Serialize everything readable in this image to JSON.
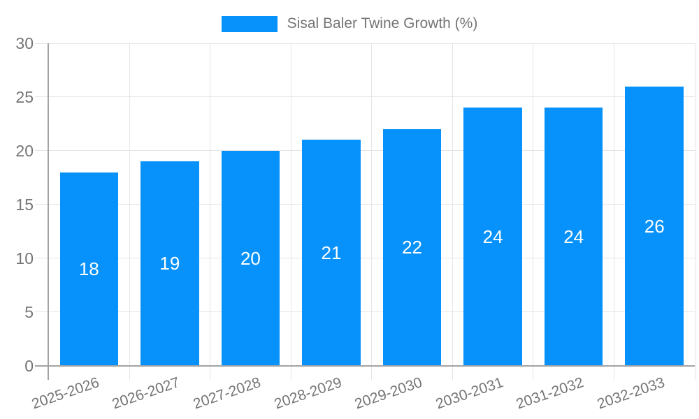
{
  "chart_data": {
    "type": "bar",
    "title": "Sisal Baler Twine Growth (%)",
    "categories": [
      "2025-2026",
      "2026-2027",
      "2027-2028",
      "2028-2029",
      "2029-2030",
      "2030-2031",
      "2031-2032",
      "2032-2033"
    ],
    "values": [
      18,
      19,
      20,
      21,
      22,
      24,
      24,
      26
    ],
    "xlabel": "",
    "ylabel": "",
    "ylim": [
      0,
      30
    ],
    "yticks": [
      0,
      5,
      10,
      15,
      20,
      25,
      30
    ],
    "grid": true,
    "legend_position": "top",
    "bar_color": "#0791FA",
    "value_label_color": "#ffffff",
    "axis_line_color": "#a3a3a3",
    "gridline_color": "#e5e5e5",
    "axis_text_color": "#757575"
  }
}
